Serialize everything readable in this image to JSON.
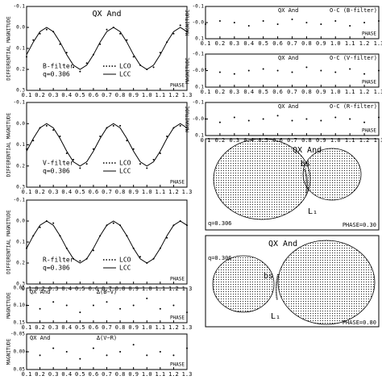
{
  "chart_data": [
    {
      "type": "line",
      "title": "QX And",
      "annotations": [
        "B-filter",
        "q=0.306"
      ],
      "x_label": "PHASE",
      "y_label": "DIFFERENTIAL MAGNITUDE",
      "x": [
        0.1,
        0.15,
        0.2,
        0.25,
        0.3,
        0.35,
        0.4,
        0.45,
        0.5,
        0.55,
        0.6,
        0.65,
        0.7,
        0.75,
        0.8,
        0.85,
        0.9,
        0.95,
        1.0,
        1.05,
        1.1,
        1.15,
        1.2,
        1.25,
        1.3
      ],
      "series": [
        {
          "name": "LCO",
          "color": "#000000",
          "marker": "dot",
          "values": [
            0.14,
            0.06,
            0.03,
            0.01,
            0.02,
            0.08,
            0.12,
            0.19,
            0.21,
            0.17,
            0.13,
            0.08,
            0.01,
            0.0,
            0.03,
            0.06,
            0.14,
            0.18,
            0.2,
            0.19,
            0.12,
            0.07,
            0.03,
            -0.01,
            0.02
          ]
        },
        {
          "name": "LCC",
          "color": "#000000",
          "marker": "line",
          "values": [
            0.13,
            0.07,
            0.02,
            0.0,
            0.02,
            0.07,
            0.13,
            0.18,
            0.2,
            0.18,
            0.13,
            0.07,
            0.02,
            0.0,
            0.02,
            0.07,
            0.13,
            0.18,
            0.2,
            0.18,
            0.13,
            0.07,
            0.02,
            0.0,
            0.02
          ]
        }
      ],
      "xlim": [
        0.1,
        1.3
      ],
      "xticks": [
        0.1,
        0.2,
        0.3,
        0.4,
        0.5,
        0.6,
        0.7,
        0.8,
        0.9,
        {
          "value": 1,
          "label": "1.0"
        },
        1.1,
        1.2,
        1.3
      ],
      "ylim": [
        -0.1,
        0.3
      ],
      "invert_y": true,
      "yticks": [
        -0.1,
        {
          "value": 0,
          "label": "0.0"
        },
        0.1,
        0.2,
        0.3
      ]
    },
    {
      "type": "line",
      "annotations": [
        "V-filter",
        "q=0.306"
      ],
      "x_label": "PHASE",
      "y_label": "DIFFERENTIAL MAGNITUDE",
      "x": [
        0.1,
        0.15,
        0.2,
        0.25,
        0.3,
        0.35,
        0.4,
        0.45,
        0.5,
        0.55,
        0.6,
        0.65,
        0.7,
        0.75,
        0.8,
        0.85,
        0.9,
        0.95,
        1.0,
        1.05,
        1.1,
        1.15,
        1.2,
        1.25,
        1.3
      ],
      "series": [
        {
          "name": "LCO",
          "color": "#000000",
          "marker": "dot",
          "values": [
            0.12,
            0.08,
            0.02,
            0.01,
            0.03,
            0.06,
            0.14,
            0.17,
            0.21,
            0.19,
            0.12,
            0.06,
            0.02,
            0.01,
            0.01,
            0.08,
            0.12,
            0.19,
            0.21,
            0.17,
            0.14,
            0.06,
            0.02,
            0.01,
            0.03
          ]
        },
        {
          "name": "LCC",
          "color": "#000000",
          "marker": "line",
          "values": [
            0.13,
            0.07,
            0.02,
            0.0,
            0.02,
            0.07,
            0.13,
            0.18,
            0.2,
            0.18,
            0.13,
            0.07,
            0.02,
            0.0,
            0.02,
            0.07,
            0.13,
            0.18,
            0.2,
            0.18,
            0.13,
            0.07,
            0.02,
            0.0,
            0.02
          ]
        }
      ],
      "xlim": [
        0.1,
        1.3
      ],
      "xticks": [
        0.1,
        0.2,
        0.3,
        0.4,
        0.5,
        0.6,
        0.7,
        0.8,
        0.9,
        {
          "value": 1,
          "label": "1.0"
        },
        1.1,
        1.2,
        1.3
      ],
      "ylim": [
        -0.1,
        0.3
      ],
      "invert_y": true,
      "yticks": [
        -0.1,
        {
          "value": 0,
          "label": "0.0"
        },
        0.1,
        0.2,
        0.3
      ]
    },
    {
      "type": "line",
      "annotations": [
        "R-filter",
        "q=0.306"
      ],
      "x_label": "PHASE",
      "y_label": "DIFFERENTIAL MAGNITUDE",
      "x": [
        0.1,
        0.15,
        0.2,
        0.25,
        0.3,
        0.35,
        0.4,
        0.45,
        0.5,
        0.55,
        0.6,
        0.65,
        0.7,
        0.75,
        0.8,
        0.85,
        0.9,
        0.95,
        1.0,
        1.05,
        1.1,
        1.15,
        1.2,
        1.25,
        1.3
      ],
      "series": [
        {
          "name": "LCO",
          "color": "#000000",
          "marker": "dot",
          "values": [
            0.13,
            0.07,
            0.03,
            0.0,
            0.01,
            0.07,
            0.13,
            0.18,
            0.19,
            0.18,
            0.14,
            0.07,
            0.02,
            0.01,
            0.02,
            0.07,
            0.13,
            0.17,
            0.2,
            0.18,
            0.13,
            0.08,
            0.02,
            0.0,
            0.02
          ]
        },
        {
          "name": "LCC",
          "color": "#000000",
          "marker": "line",
          "values": [
            0.13,
            0.07,
            0.02,
            0.0,
            0.02,
            0.07,
            0.13,
            0.18,
            0.2,
            0.18,
            0.13,
            0.07,
            0.02,
            0.0,
            0.02,
            0.07,
            0.13,
            0.18,
            0.2,
            0.18,
            0.13,
            0.07,
            0.02,
            0.0,
            0.02
          ]
        }
      ],
      "xlim": [
        0.1,
        1.3
      ],
      "xticks": [
        0.1,
        0.2,
        0.3,
        0.4,
        0.5,
        0.6,
        0.7,
        0.8,
        0.9,
        {
          "value": 1,
          "label": "1.0"
        },
        1.1,
        1.2,
        1.3
      ],
      "ylim": [
        -0.1,
        0.3
      ],
      "invert_y": true,
      "yticks": [
        -0.1,
        {
          "value": 0,
          "label": "0.0"
        },
        0.1,
        0.2,
        0.3
      ]
    },
    {
      "type": "scatter",
      "title": "QX And",
      "subtitle": "Δ(B−V)",
      "x_label": "PHASE",
      "y_label": "MAGNITUDE",
      "x": [
        0.1,
        0.2,
        0.3,
        0.4,
        0.5,
        0.6,
        0.7,
        0.8,
        0.9,
        1.0,
        1.1,
        1.2,
        1.3
      ],
      "values": [
        0.1,
        0.11,
        0.09,
        0.1,
        0.12,
        0.1,
        0.09,
        0.11,
        0.1,
        0.08,
        0.11,
        0.1,
        0.12
      ],
      "xlim": [
        0.1,
        1.3
      ],
      "xticks": [
        0.1,
        0.2,
        0.3,
        0.4,
        0.5,
        0.6,
        0.7,
        0.8,
        0.9,
        {
          "value": 1,
          "label": "1.0"
        },
        1.1,
        1.2,
        1.3
      ],
      "ylim": [
        0.05,
        0.15
      ],
      "invert_y": true,
      "yticks": [
        {
          "value": 0.05,
          "label": "0.05"
        },
        {
          "value": 0.1,
          "label": "0.10"
        },
        {
          "value": 0.15,
          "label": "0.15"
        }
      ]
    },
    {
      "type": "scatter",
      "title": "QX And",
      "subtitle": "Δ(V−R)",
      "x_label": "PHASE",
      "y_label": "MAGNITUDE",
      "x": [
        0.1,
        0.2,
        0.3,
        0.4,
        0.5,
        0.6,
        0.7,
        0.8,
        0.9,
        1.0,
        1.1,
        1.2,
        1.3
      ],
      "values": [
        0.0,
        0.01,
        -0.01,
        0.0,
        0.02,
        -0.01,
        0.01,
        0.0,
        -0.02,
        0.01,
        0.0,
        0.01,
        -0.01
      ],
      "xlim": [
        0.1,
        1.3
      ],
      "xticks": [
        0.1,
        0.2,
        0.3,
        0.4,
        0.5,
        0.6,
        0.7,
        0.8,
        0.9,
        {
          "value": 1,
          "label": "1.0"
        },
        1.1,
        1.2,
        1.3
      ],
      "ylim": [
        -0.05,
        0.05
      ],
      "invert_y": true,
      "yticks": [
        -0.05,
        {
          "value": 0,
          "label": "0.00"
        },
        0.05
      ]
    },
    {
      "type": "scatter",
      "title": "QX And",
      "subtitle": "O-C (B-filter)",
      "x_label": "PHASE",
      "y_label": "MAGNITUDE",
      "x": [
        0.1,
        0.2,
        0.3,
        0.4,
        0.5,
        0.6,
        0.7,
        0.8,
        0.9,
        1.0,
        1.1,
        1.2,
        1.3
      ],
      "values": [
        0.01,
        -0.01,
        0.0,
        0.02,
        -0.01,
        0.01,
        -0.02,
        0.0,
        0.01,
        -0.01,
        0.02,
        0.0,
        -0.01
      ],
      "xlim": [
        0.1,
        1.3
      ],
      "xticks": [
        0.1,
        0.2,
        0.3,
        0.4,
        0.5,
        0.6,
        0.7,
        0.8,
        0.9,
        {
          "value": 1,
          "label": "1.0"
        },
        1.1,
        1.2,
        1.3
      ],
      "ylim": [
        -0.1,
        0.1
      ],
      "invert_y": true,
      "yticks": [
        -0.1,
        {
          "value": 0,
          "label": "-0.0"
        },
        0.1
      ]
    },
    {
      "type": "scatter",
      "title": "QX And",
      "subtitle": "O-C (V-filter)",
      "x_label": "PHASE",
      "y_label": "MAGNITUDE",
      "x": [
        0.1,
        0.2,
        0.3,
        0.4,
        0.5,
        0.6,
        0.7,
        0.8,
        0.9,
        1.0,
        1.1,
        1.2,
        1.3
      ],
      "values": [
        -0.01,
        0.01,
        0.02,
        0.0,
        -0.01,
        0.0,
        0.01,
        -0.02,
        0.0,
        0.01,
        -0.01,
        0.02,
        0.0
      ],
      "xlim": [
        0.1,
        1.3
      ],
      "xticks": [
        0.1,
        0.2,
        0.3,
        0.4,
        0.5,
        0.6,
        0.7,
        0.8,
        0.9,
        {
          "value": 1,
          "label": "1.0"
        },
        1.1,
        1.2,
        1.3
      ],
      "ylim": [
        -0.1,
        0.1
      ],
      "invert_y": true,
      "yticks": [
        -0.1,
        {
          "value": 0,
          "label": "-0.0"
        },
        0.1
      ]
    },
    {
      "type": "scatter",
      "title": "QX And",
      "subtitle": "O-C (R-filter)",
      "x_label": "PHASE",
      "y_label": "MAGNITUDE",
      "x": [
        0.1,
        0.2,
        0.3,
        0.4,
        0.5,
        0.6,
        0.7,
        0.8,
        0.9,
        1.0,
        1.1,
        1.2,
        1.3
      ],
      "values": [
        0.0,
        0.02,
        -0.01,
        0.01,
        0.0,
        -0.02,
        0.01,
        0.0,
        0.01,
        -0.01,
        0.0,
        0.02,
        -0.01
      ],
      "xlim": [
        0.1,
        1.3
      ],
      "xticks": [
        0.1,
        0.2,
        0.3,
        0.4,
        0.5,
        0.6,
        0.7,
        0.8,
        0.9,
        {
          "value": 1,
          "label": "1.0"
        },
        1.1,
        1.2,
        1.3
      ],
      "ylim": [
        -0.1,
        0.1
      ],
      "invert_y": true,
      "yticks": [
        -0.1,
        {
          "value": 0,
          "label": "-0.0"
        },
        0.1
      ]
    }
  ],
  "diagrams": [
    {
      "title": "QX And",
      "spot": "bs",
      "point": "L₁",
      "mass_ratio": "q=0.306",
      "phase": "PHASE=0.30"
    },
    {
      "title": "QX And",
      "spot": "bs",
      "point": "L₁",
      "mass_ratio": "q=0.306",
      "phase": "PHASE=0.80"
    }
  ]
}
